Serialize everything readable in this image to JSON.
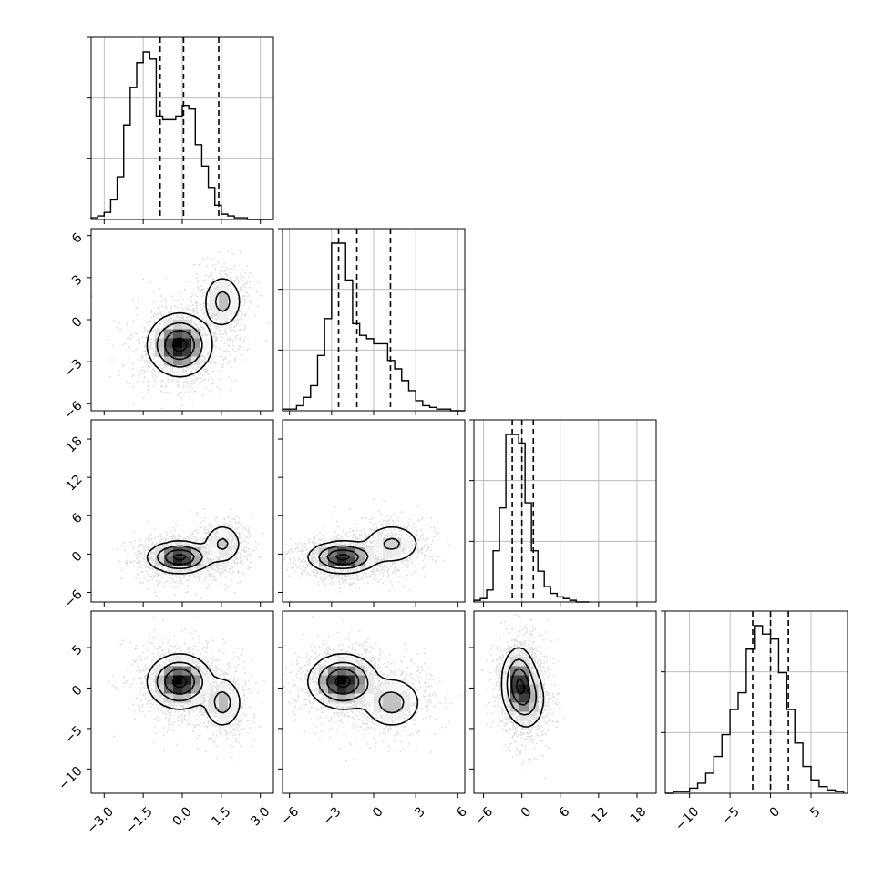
{
  "chart_data": {
    "type": "corner",
    "title": "",
    "grid": true,
    "colors": {
      "line": "#000000",
      "grid": "#b0b0b0",
      "scatter": "#9a9a9a"
    },
    "parameters": [
      {
        "name": "",
        "range": [
          -3.5,
          3.5
        ],
        "ticks": [
          -3.0,
          -1.5,
          0.0,
          1.5,
          3.0
        ],
        "tick_labels": [
          "−3.0",
          "−1.5",
          "0.0",
          "1.5",
          "3.0"
        ],
        "quantiles": [
          -0.85,
          0.05,
          1.4
        ],
        "histogram": {
          "edges": [
            -3.5,
            -3.25,
            -3.0,
            -2.75,
            -2.5,
            -2.25,
            -2.0,
            -1.75,
            -1.5,
            -1.25,
            -1.0,
            -0.75,
            -0.5,
            -0.25,
            0.0,
            0.25,
            0.5,
            0.75,
            1.0,
            1.25,
            1.5,
            1.75,
            2.0,
            2.25,
            2.5,
            2.75,
            3.0,
            3.25,
            3.5
          ],
          "counts": [
            0.01,
            0.02,
            0.04,
            0.11,
            0.24,
            0.53,
            0.74,
            0.88,
            0.94,
            0.9,
            0.58,
            0.56,
            0.56,
            0.58,
            0.64,
            0.62,
            0.42,
            0.3,
            0.18,
            0.08,
            0.03,
            0.02,
            0.01,
            0.01,
            0.0,
            0.0,
            0.0,
            0.0
          ]
        }
      },
      {
        "name": "",
        "range": [
          -6.5,
          6.5
        ],
        "ticks": [
          -6,
          -3,
          0,
          3,
          6
        ],
        "tick_labels": [
          "−6",
          "−3",
          "0",
          "3",
          "6"
        ],
        "quantiles": [
          -2.5,
          -1.2,
          1.2
        ],
        "histogram": {
          "edges": [
            -6.5,
            -6.0,
            -5.5,
            -5.0,
            -4.5,
            -4.0,
            -3.5,
            -3.0,
            -2.5,
            -2.0,
            -1.5,
            -1.0,
            -0.5,
            0.0,
            0.5,
            1.0,
            1.5,
            2.0,
            2.5,
            3.0,
            3.5,
            4.0,
            4.5,
            5.0,
            5.5,
            6.0,
            6.5
          ],
          "counts": [
            0.01,
            0.01,
            0.03,
            0.08,
            0.15,
            0.33,
            0.55,
            1.0,
            1.0,
            0.78,
            0.52,
            0.45,
            0.43,
            0.4,
            0.4,
            0.3,
            0.25,
            0.18,
            0.12,
            0.06,
            0.03,
            0.02,
            0.01,
            0.01,
            0.0,
            0.0
          ]
        }
      },
      {
        "name": "",
        "range": [
          -7.5,
          21.0
        ],
        "ticks": [
          -6,
          0,
          6,
          12,
          18
        ],
        "tick_labels": [
          "−6",
          "0",
          "6",
          "12",
          "18"
        ],
        "quantiles": [
          -1.5,
          0.0,
          1.8
        ],
        "histogram": {
          "edges": [
            -7.5,
            -6.5,
            -5.5,
            -4.5,
            -3.5,
            -2.5,
            -1.5,
            -0.5,
            0.5,
            1.5,
            2.5,
            3.5,
            4.5,
            5.5,
            6.5,
            7.5,
            8.5,
            9.5,
            10.5
          ],
          "counts": [
            0.01,
            0.02,
            0.07,
            0.3,
            0.55,
            0.98,
            0.98,
            0.93,
            0.58,
            0.3,
            0.18,
            0.09,
            0.05,
            0.03,
            0.02,
            0.01,
            0.0,
            0.0
          ]
        }
      },
      {
        "name": "",
        "range": [
          -13.0,
          9.5
        ],
        "ticks": [
          -10,
          -5,
          0,
          5
        ],
        "tick_labels": [
          "−10",
          "−5",
          "0",
          "5"
        ],
        "quantiles": [
          -2.2,
          0.0,
          2.2
        ],
        "histogram": {
          "edges": [
            -13.0,
            -12.0,
            -11.0,
            -10.0,
            -9.0,
            -8.0,
            -7.0,
            -6.0,
            -5.0,
            -4.0,
            -3.0,
            -2.0,
            -1.0,
            0.0,
            1.0,
            2.0,
            3.0,
            4.0,
            5.0,
            6.0,
            7.0,
            8.0,
            9.0
          ],
          "counts": [
            0.0,
            0.01,
            0.01,
            0.03,
            0.06,
            0.12,
            0.22,
            0.35,
            0.5,
            0.6,
            0.86,
            1.0,
            0.95,
            0.92,
            0.72,
            0.5,
            0.3,
            0.16,
            0.08,
            0.04,
            0.02,
            0.01
          ]
        }
      }
    ],
    "pairs": [
      {
        "row": 1,
        "col": 0,
        "peaks": [
          {
            "x": -0.1,
            "y": -1.8,
            "sx": 0.55,
            "sy": 1.0,
            "w": 1.0
          },
          {
            "x": 1.55,
            "y": 1.3,
            "sx": 0.35,
            "sy": 0.9,
            "w": 0.4
          }
        ]
      },
      {
        "row": 2,
        "col": 0,
        "peaks": [
          {
            "x": -0.1,
            "y": -0.5,
            "sx": 0.55,
            "sy": 1.1,
            "w": 1.0
          },
          {
            "x": 1.55,
            "y": 1.6,
            "sx": 0.35,
            "sy": 1.5,
            "w": 0.35
          }
        ]
      },
      {
        "row": 3,
        "col": 0,
        "peaks": [
          {
            "x": -0.1,
            "y": 0.8,
            "sx": 0.55,
            "sy": 1.5,
            "w": 1.0
          },
          {
            "x": 1.55,
            "y": -1.8,
            "sx": 0.35,
            "sy": 1.5,
            "w": 0.42
          }
        ]
      },
      {
        "row": 2,
        "col": 1,
        "peaks": [
          {
            "x": -2.2,
            "y": -0.5,
            "sx": 1.1,
            "sy": 1.1,
            "w": 1.0
          },
          {
            "x": 1.3,
            "y": 1.6,
            "sx": 1.0,
            "sy": 1.5,
            "w": 0.35
          }
        ]
      },
      {
        "row": 3,
        "col": 1,
        "peaks": [
          {
            "x": -2.2,
            "y": 0.8,
            "sx": 1.1,
            "sy": 1.5,
            "w": 1.0
          },
          {
            "x": 1.3,
            "y": -1.8,
            "sx": 1.0,
            "sy": 1.5,
            "w": 0.42
          }
        ]
      },
      {
        "row": 3,
        "col": 2,
        "peaks": [
          {
            "x": -0.5,
            "y": 0.6,
            "sx": 1.2,
            "sy": 2.0,
            "w": 1.0
          },
          {
            "x": 1.0,
            "y": -1.4,
            "sx": 1.3,
            "sy": 1.8,
            "w": 0.45
          }
        ]
      }
    ]
  }
}
